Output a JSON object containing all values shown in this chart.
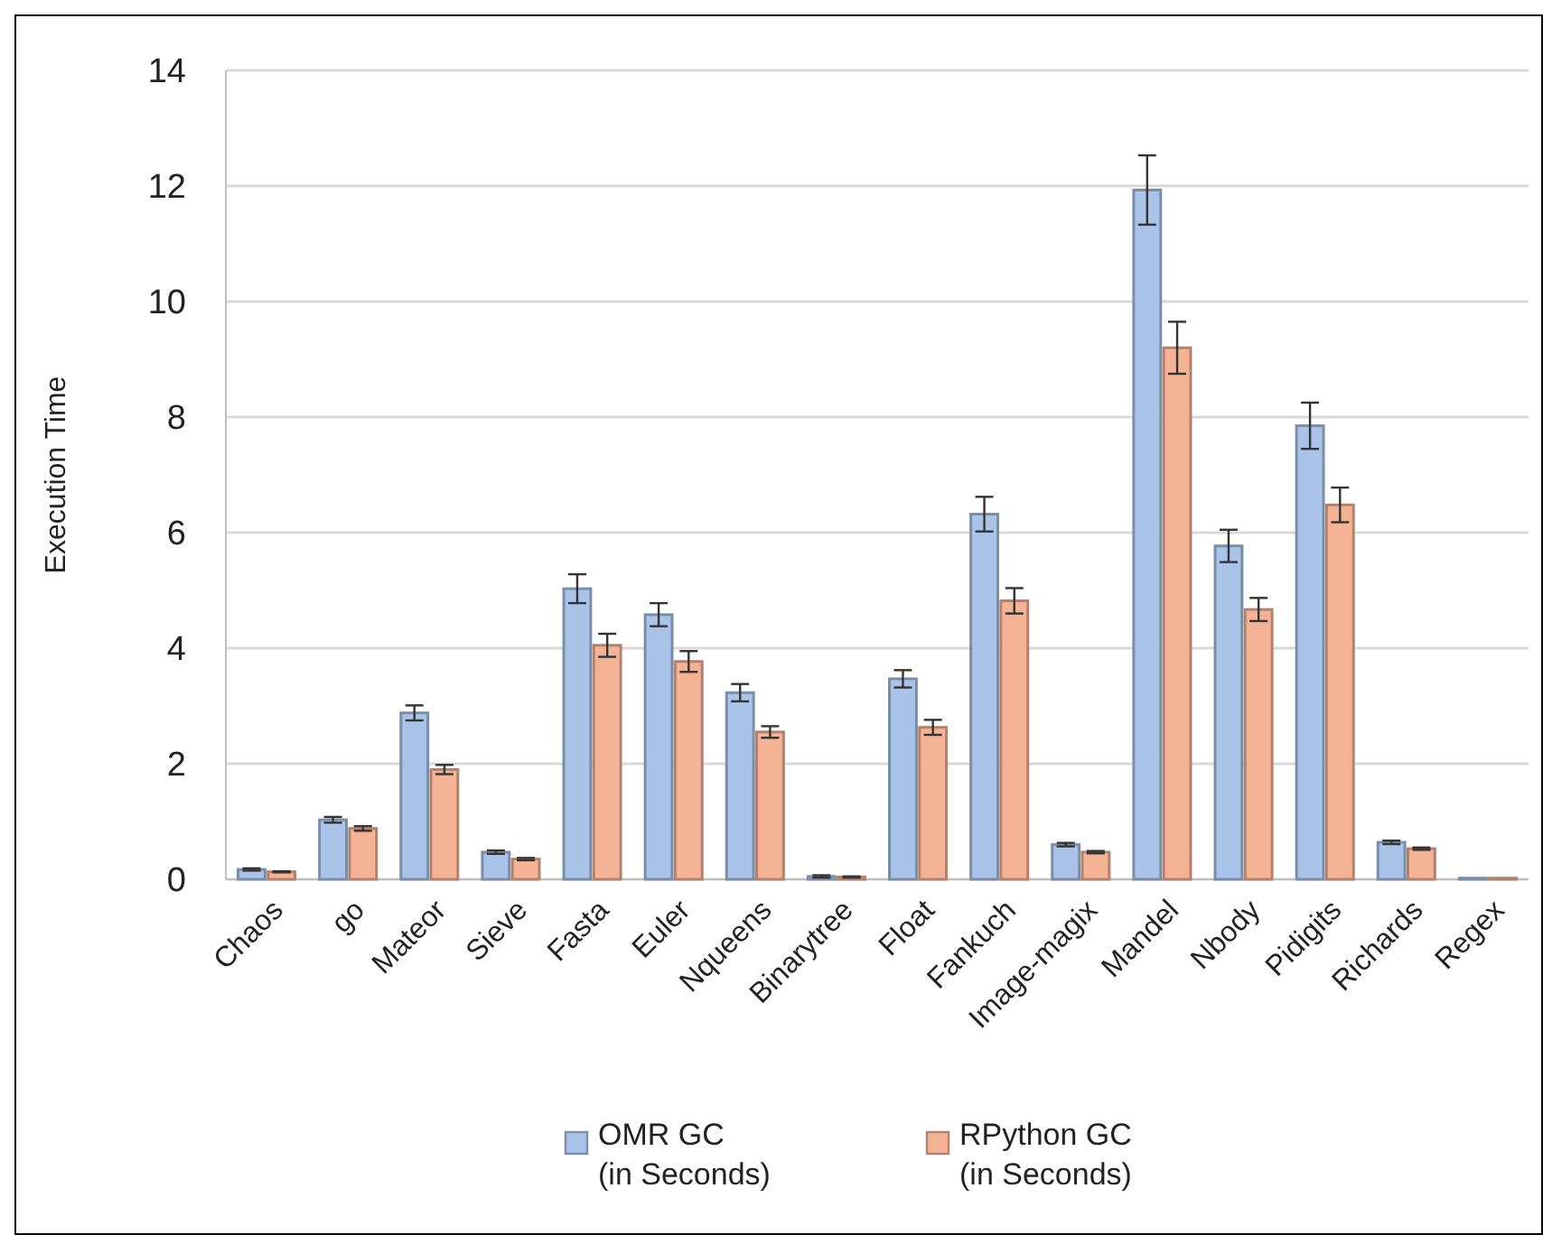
{
  "chart_data": {
    "type": "bar",
    "ylabel": "Execution Time",
    "categories": [
      "Chaos",
      "go",
      "Mateor",
      "Sieve",
      "Fasta",
      "Euler",
      "Nqueens",
      "Binarytree",
      "Float",
      "Fankuch",
      "Image-magix",
      "Mandel",
      "Nbody",
      "Pidigits",
      "Richards",
      "Regex"
    ],
    "series": [
      {
        "name": "OMR GC (in Seconds)",
        "color": "#a9c4e8",
        "values": [
          0.17,
          1.03,
          2.88,
          0.47,
          5.03,
          4.58,
          3.23,
          0.05,
          3.47,
          6.32,
          0.6,
          11.93,
          5.77,
          7.85,
          0.64,
          0.02
        ],
        "errors": [
          0.02,
          0.05,
          0.13,
          0.03,
          0.25,
          0.2,
          0.15,
          0.02,
          0.15,
          0.3,
          0.03,
          0.6,
          0.28,
          0.4,
          0.03,
          null
        ]
      },
      {
        "name": "RPython GC (in Seconds)",
        "color": "#f5b396",
        "values": [
          0.13,
          0.88,
          1.9,
          0.35,
          4.05,
          3.77,
          2.55,
          0.04,
          2.63,
          4.82,
          0.47,
          9.2,
          4.67,
          6.48,
          0.53,
          0.02
        ],
        "errors": [
          0.01,
          0.04,
          0.08,
          0.02,
          0.2,
          0.18,
          0.1,
          0.01,
          0.13,
          0.22,
          0.02,
          0.45,
          0.2,
          0.3,
          0.02,
          null
        ]
      }
    ],
    "ylim": [
      0,
      14
    ],
    "yticks": [
      0,
      2,
      4,
      6,
      8,
      10,
      12,
      14
    ],
    "grid": "y",
    "legend": "bottom"
  }
}
